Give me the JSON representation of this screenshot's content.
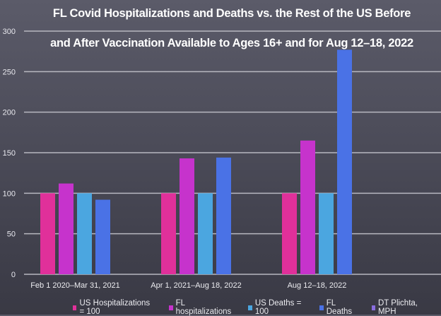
{
  "chart_data": {
    "type": "bar",
    "title": "FL Covid Hospitalizations and Deaths vs. the Rest of the US Before and After Vaccination Available to Ages 16+ and for Aug 12–18, 2022",
    "title_lines": [
      "FL Covid Hospitalizations and Deaths vs. the Rest of the US Before",
      "and After Vaccination Available to Ages 16+ and for Aug 12–18, 2022"
    ],
    "xlabel": "",
    "ylabel": "",
    "ylim": [
      0,
      300
    ],
    "yticks": [
      "0",
      "50",
      "100",
      "150",
      "200",
      "250",
      "300"
    ],
    "ytick_values": [
      0,
      50,
      100,
      150,
      200,
      250,
      300
    ],
    "grid": true,
    "legend_position": "bottom",
    "categories": [
      "Feb 1 2020–Mar 31, 2021",
      "Apr 1, 2021–Aug 18, 2022",
      "Aug 12–18, 2022"
    ],
    "series": [
      {
        "name": "US Hospitalizations = 100",
        "color": "#e0309a",
        "values": [
          100,
          100,
          100
        ]
      },
      {
        "name": "FL hospitalizations",
        "color": "#c633cc",
        "values": [
          112,
          143,
          165
        ]
      },
      {
        "name": "US Deaths = 100",
        "color": "#4ba6e0",
        "values": [
          100,
          100,
          100
        ]
      },
      {
        "name": "FL Deaths",
        "color": "#4a72e6",
        "values": [
          92,
          144,
          277
        ]
      },
      {
        "name": "DT Plichta, MPH",
        "color": "#8a6ee0",
        "values": [
          null,
          null,
          null
        ]
      }
    ]
  }
}
